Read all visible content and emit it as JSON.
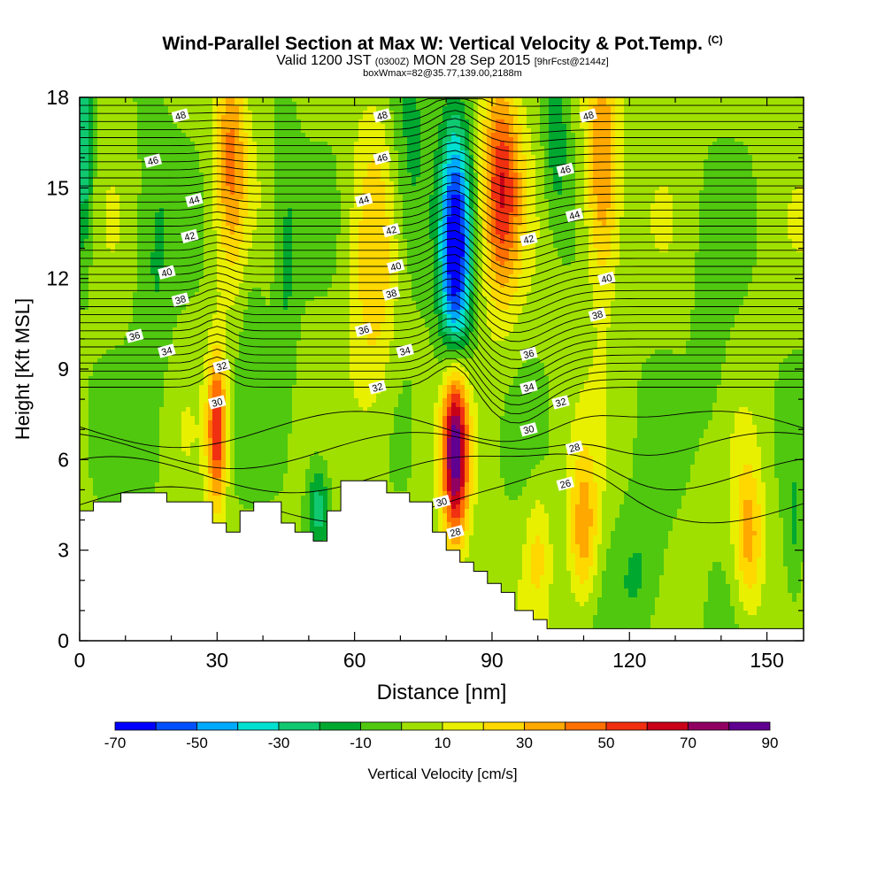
{
  "title": {
    "main": "Wind-Parallel Section at Max W: Vertical Velocity & Pot.Temp.",
    "main_tag": "(C)",
    "valid_a": "Valid 1200 JST",
    "valid_b": "(0300Z)",
    "valid_c": "MON 28 Sep 2015",
    "valid_d": "[9hrFcst@2144z]",
    "box": "boxWmax=82@35.77,139.00,2188m"
  },
  "chart_data": {
    "type": "heatmap",
    "xlabel": "Distance [nm]",
    "ylabel": "Height [Kft MSL]",
    "xlim": [
      0,
      158
    ],
    "ylim": [
      0,
      18
    ],
    "xticks": [
      0,
      30,
      60,
      90,
      120,
      150
    ],
    "yticks": [
      0,
      3,
      6,
      9,
      12,
      15,
      18
    ],
    "colorbar": {
      "label": "Vertical Velocity [cm/s]",
      "tick_labels": [
        "-70",
        "-50",
        "-30",
        "-10",
        "10",
        "30",
        "50",
        "70",
        "90"
      ],
      "bounds": [
        -70,
        -60,
        -50,
        -40,
        -30,
        -20,
        -10,
        0,
        10,
        20,
        30,
        40,
        50,
        60,
        70,
        80,
        90
      ],
      "colors": [
        "#0000ff",
        "#0050ff",
        "#00aaff",
        "#00e0d0",
        "#10c870",
        "#00a830",
        "#50c810",
        "#a0e000",
        "#e8f000",
        "#ffd800",
        "#ffa800",
        "#ff7000",
        "#f03010",
        "#c80018",
        "#900060",
        "#600090"
      ]
    },
    "terrain_kft": [
      [
        0,
        4.3
      ],
      [
        3,
        4.3
      ],
      [
        3,
        4.6
      ],
      [
        9,
        4.6
      ],
      [
        9,
        4.9
      ],
      [
        19,
        4.9
      ],
      [
        19,
        4.6
      ],
      [
        29,
        4.6
      ],
      [
        29,
        3.9
      ],
      [
        32,
        3.9
      ],
      [
        32,
        3.6
      ],
      [
        35,
        3.6
      ],
      [
        35,
        4.3
      ],
      [
        38,
        4.3
      ],
      [
        38,
        4.6
      ],
      [
        44,
        4.6
      ],
      [
        44,
        3.9
      ],
      [
        47,
        3.9
      ],
      [
        47,
        3.6
      ],
      [
        51,
        3.6
      ],
      [
        51,
        3.3
      ],
      [
        54,
        3.3
      ],
      [
        54,
        4.3
      ],
      [
        57,
        4.3
      ],
      [
        57,
        5.3
      ],
      [
        67,
        5.3
      ],
      [
        67,
        4.9
      ],
      [
        72,
        4.9
      ],
      [
        72,
        4.6
      ],
      [
        77,
        4.6
      ],
      [
        77,
        3.6
      ],
      [
        80,
        3.6
      ],
      [
        80,
        3.0
      ],
      [
        83,
        3.0
      ],
      [
        83,
        2.6
      ],
      [
        86,
        2.6
      ],
      [
        86,
        2.3
      ],
      [
        89,
        2.3
      ],
      [
        89,
        1.9
      ],
      [
        92,
        1.9
      ],
      [
        92,
        1.6
      ],
      [
        95,
        1.6
      ],
      [
        95,
        1.0
      ],
      [
        99,
        1.0
      ],
      [
        99,
        0.7
      ],
      [
        102,
        0.7
      ],
      [
        102,
        0.4
      ],
      [
        158,
        0.4
      ]
    ],
    "vertical_velocity_cores": [
      {
        "x": 82,
        "y": 6.5,
        "w": 90,
        "sx": 2.0,
        "sy": 2.2
      },
      {
        "x": 82,
        "y": 12.6,
        "w": -72,
        "sx": 2.4,
        "sy": 3.2
      },
      {
        "x": 92,
        "y": 15.0,
        "w": 55,
        "sx": 3.0,
        "sy": 2.6
      },
      {
        "x": 30,
        "y": 7.0,
        "w": 58,
        "sx": 1.5,
        "sy": 1.8
      },
      {
        "x": 33,
        "y": 16.2,
        "w": 38,
        "sx": 2.4,
        "sy": 2.6
      },
      {
        "x": 114,
        "y": 15.5,
        "w": 42,
        "sx": 2.6,
        "sy": 2.8
      },
      {
        "x": 110,
        "y": 3.6,
        "w": 34,
        "sx": 2.2,
        "sy": 1.8
      },
      {
        "x": 146,
        "y": 3.4,
        "w": 32,
        "sx": 2.2,
        "sy": 1.8
      },
      {
        "x": 64,
        "y": 12.0,
        "w": 22,
        "sx": 3.5,
        "sy": 4.0
      },
      {
        "x": 100,
        "y": 3.0,
        "w": 18,
        "sx": 2.0,
        "sy": 1.5
      },
      {
        "x": 1,
        "y": 16.2,
        "w": -32,
        "sx": 1.4,
        "sy": 2.5
      },
      {
        "x": 52,
        "y": 4.5,
        "w": -30,
        "sx": 1.8,
        "sy": 1.2
      },
      {
        "x": 45,
        "y": 12.5,
        "w": -14,
        "sx": 2.0,
        "sy": 4.0
      },
      {
        "x": 16,
        "y": 11.5,
        "w": -12,
        "sx": 3.0,
        "sy": 5.0
      },
      {
        "x": 72,
        "y": 16.0,
        "w": -18,
        "sx": 3.0,
        "sy": 3.0
      },
      {
        "x": 104,
        "y": 16.5,
        "w": -20,
        "sx": 2.0,
        "sy": 2.0
      },
      {
        "x": 122,
        "y": 2.0,
        "w": -16,
        "sx": 4.0,
        "sy": 1.8
      },
      {
        "x": 138,
        "y": 9.5,
        "w": -10,
        "sx": 3.0,
        "sy": 3.0
      },
      {
        "x": 156,
        "y": 3.0,
        "w": -14,
        "sx": 1.5,
        "sy": 2.0
      },
      {
        "x": 38,
        "y": 10.5,
        "w": -10,
        "sx": 2.0,
        "sy": 2.0
      }
    ],
    "theta_labels": [
      {
        "text": "48",
        "x": 22,
        "y": 17.4
      },
      {
        "text": "48",
        "x": 66,
        "y": 17.4
      },
      {
        "text": "48",
        "x": 111,
        "y": 17.4
      },
      {
        "text": "46",
        "x": 16,
        "y": 15.9
      },
      {
        "text": "46",
        "x": 66,
        "y": 16.0
      },
      {
        "text": "46",
        "x": 106,
        "y": 15.6
      },
      {
        "text": "44",
        "x": 25,
        "y": 14.6
      },
      {
        "text": "44",
        "x": 62,
        "y": 14.6
      },
      {
        "text": "44",
        "x": 108,
        "y": 14.1
      },
      {
        "text": "42",
        "x": 24,
        "y": 13.4
      },
      {
        "text": "42",
        "x": 68,
        "y": 13.6
      },
      {
        "text": "42",
        "x": 98,
        "y": 13.3
      },
      {
        "text": "40",
        "x": 19,
        "y": 12.2
      },
      {
        "text": "40",
        "x": 69,
        "y": 12.4
      },
      {
        "text": "40",
        "x": 115,
        "y": 12.0
      },
      {
        "text": "38",
        "x": 22,
        "y": 11.3
      },
      {
        "text": "38",
        "x": 68,
        "y": 11.5
      },
      {
        "text": "38",
        "x": 113,
        "y": 10.8
      },
      {
        "text": "36",
        "x": 12,
        "y": 10.1
      },
      {
        "text": "36",
        "x": 62,
        "y": 10.3
      },
      {
        "text": "36",
        "x": 98,
        "y": 9.5
      },
      {
        "text": "34",
        "x": 19,
        "y": 9.6
      },
      {
        "text": "34",
        "x": 71,
        "y": 9.6
      },
      {
        "text": "34",
        "x": 98,
        "y": 8.4
      },
      {
        "text": "32",
        "x": 31,
        "y": 9.1
      },
      {
        "text": "32",
        "x": 65,
        "y": 8.4
      },
      {
        "text": "32",
        "x": 105,
        "y": 7.9
      },
      {
        "text": "30",
        "x": 30,
        "y": 7.9
      },
      {
        "text": "30",
        "x": 79,
        "y": 4.6
      },
      {
        "text": "30",
        "x": 98,
        "y": 7.0
      },
      {
        "text": "28",
        "x": 82,
        "y": 3.6
      },
      {
        "text": "28",
        "x": 108,
        "y": 6.4
      },
      {
        "text": "26",
        "x": 106,
        "y": 5.2
      }
    ]
  }
}
